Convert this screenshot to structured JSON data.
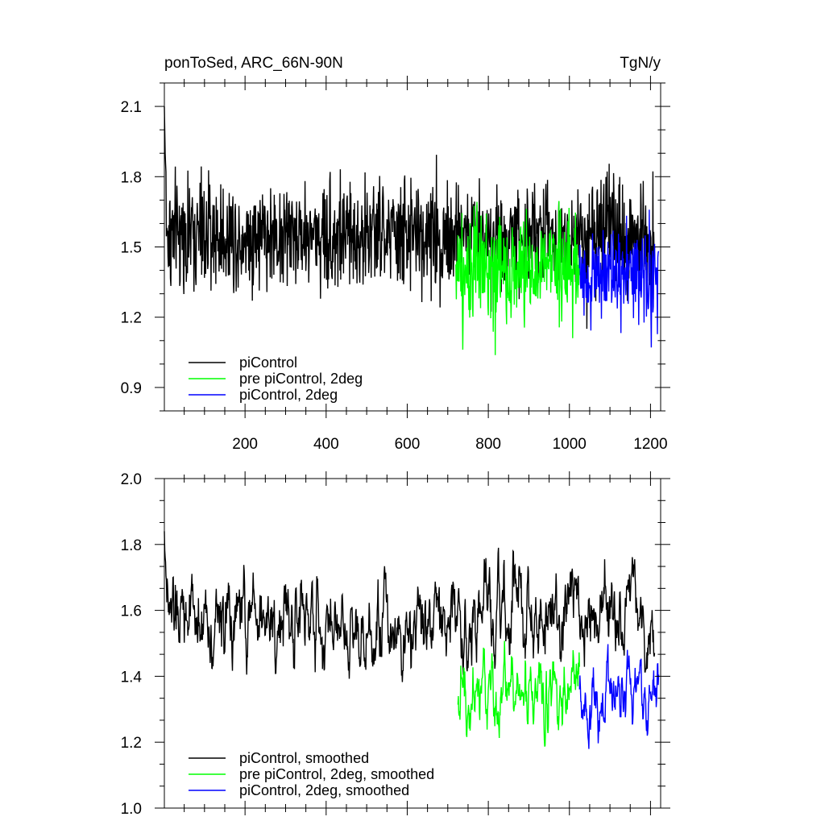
{
  "chart_data": [
    {
      "type": "line",
      "title_left": "ponToSed, ARC_66N-90N",
      "title_right": "TgN/y",
      "xlim": [
        1,
        1225
      ],
      "ylim": [
        0.8,
        2.2
      ],
      "x_ticks": [
        200,
        400,
        600,
        800,
        1000,
        1200
      ],
      "x_tick_labels": [
        "200",
        "400",
        "600",
        "800",
        "1000",
        "1200"
      ],
      "y_ticks": [
        0.9,
        1.2,
        1.5,
        1.8,
        2.1
      ],
      "y_tick_labels": [
        "0.9",
        "1.2",
        "1.5",
        "1.8",
        "2.1"
      ],
      "legend_position": "bottom-left",
      "series": [
        {
          "name": "piControl",
          "color": "#000000",
          "x_start": 1,
          "x_end": 1210,
          "mean": 1.55,
          "amplitude": 0.22,
          "smoothed": false,
          "first_value": 2.1
        },
        {
          "name": "pre piControl, 2deg",
          "color": "#00ff00",
          "x_start": 720,
          "x_end": 1025,
          "mean": 1.4,
          "amplitude": 0.22,
          "smoothed": false
        },
        {
          "name": "piControl, 2deg",
          "color": "#0000ff",
          "x_start": 1025,
          "x_end": 1220,
          "mean": 1.38,
          "amplitude": 0.2,
          "smoothed": false
        }
      ]
    },
    {
      "type": "line",
      "xlim": [
        1,
        1225
      ],
      "ylim": [
        1.0,
        2.0
      ],
      "y_ticks": [
        1.0,
        1.2,
        1.4,
        1.6,
        1.8,
        2.0
      ],
      "y_tick_labels": [
        "1.0",
        "1.2",
        "1.4",
        "1.6",
        "1.8",
        "2.0"
      ],
      "legend_position": "bottom-left",
      "series": [
        {
          "name": "piControl, smoothed",
          "color": "#000000",
          "x_start": 1,
          "x_end": 1210,
          "mean": 1.57,
          "amplitude": 0.1,
          "smoothed": true,
          "first_value": 1.84
        },
        {
          "name": "pre piControl, 2deg, smoothed",
          "color": "#00ff00",
          "x_start": 725,
          "x_end": 1025,
          "mean": 1.36,
          "amplitude": 0.09,
          "smoothed": true
        },
        {
          "name": "piControl, 2deg, smoothed",
          "color": "#0000ff",
          "x_start": 1025,
          "x_end": 1220,
          "mean": 1.35,
          "amplitude": 0.08,
          "smoothed": true
        }
      ]
    }
  ]
}
